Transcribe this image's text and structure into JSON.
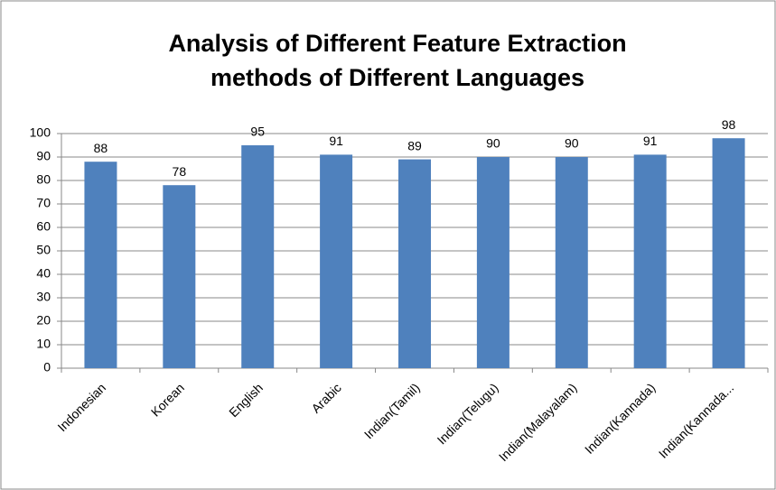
{
  "chart_data": {
    "type": "bar",
    "title": [
      "Analysis of Different Feature Extraction",
      "methods  of Different Languages"
    ],
    "categories": [
      "Indonesian",
      "Korean",
      "English",
      "Arabic",
      "Indian(Tamil)",
      "Indian(Telugu)",
      "Indian(Malayalam)",
      "Indian(Kannada)",
      "Indian(Kannada..."
    ],
    "values": [
      88,
      78,
      95,
      91,
      89,
      90,
      90,
      91,
      98
    ],
    "color": "#4f81bd",
    "ylim": [
      0,
      100
    ],
    "yticks": [
      0,
      10,
      20,
      30,
      40,
      50,
      60,
      70,
      80,
      90,
      100
    ],
    "grid": true
  }
}
